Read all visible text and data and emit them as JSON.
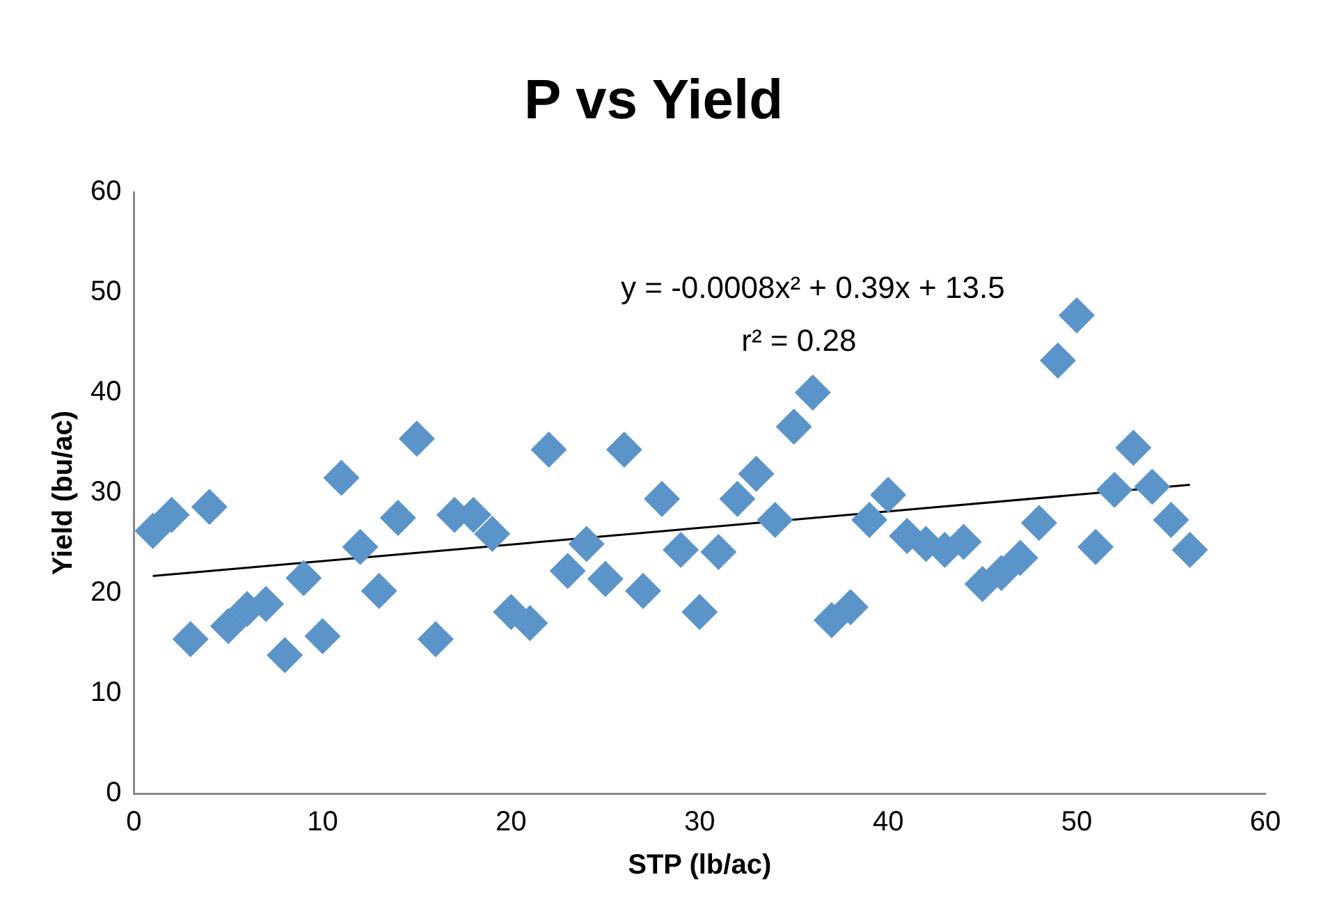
{
  "chart_data": {
    "type": "scatter",
    "title": "P vs Yield",
    "xlabel": "STP (lb/ac)",
    "ylabel": "Yield (bu/ac)",
    "xlim": [
      0,
      60
    ],
    "xticks": [
      0,
      10,
      20,
      30,
      40,
      50,
      60
    ],
    "ylim": [
      0,
      60
    ],
    "yticks": [
      0,
      10,
      20,
      30,
      40,
      50,
      60
    ],
    "grid": false,
    "legend": false,
    "marker": "diamond",
    "annotations": [
      "y = -0.0008x² + 0.39x + 13.5",
      "r² = 0.28"
    ],
    "series": [
      {
        "color": "#5b94c9",
        "x": [
          1,
          2,
          3,
          4,
          5,
          6,
          7,
          8,
          9,
          10,
          11,
          12,
          13,
          14,
          15,
          16,
          17,
          18,
          19,
          20,
          21,
          22,
          23,
          24,
          25,
          26,
          27,
          28,
          29,
          30,
          31,
          32,
          33,
          34,
          35,
          36,
          37,
          38,
          39,
          40,
          41,
          42,
          43,
          44,
          45,
          46,
          47,
          48,
          49,
          50,
          51,
          52,
          53,
          54,
          55,
          56
        ],
        "values": [
          26.2,
          27.8,
          15.4,
          28.6,
          16.7,
          18.4,
          18.9,
          13.8,
          21.5,
          15.7,
          31.5,
          24.6,
          20.2,
          27.5,
          35.4,
          15.4,
          27.8,
          27.8,
          25.9,
          18.1,
          17,
          34.3,
          22.2,
          24.9,
          21.4,
          34.3,
          20.2,
          29.4,
          24.3,
          18.1,
          24.1,
          29.4,
          31.9,
          27.3,
          36.6,
          40,
          17.3,
          18.6,
          27.3,
          29.8,
          25.7,
          24.9,
          24.3,
          25.1,
          20.9,
          22,
          23.5,
          27,
          43.2,
          47.7,
          24.6,
          30.3,
          34.5,
          30.6,
          27.3,
          24.3
        ]
      },
      {
        "type": "line",
        "marker": "none",
        "color": "#000000",
        "x": [
          1,
          56
        ],
        "values": [
          21.7,
          30.8
        ]
      }
    ]
  }
}
